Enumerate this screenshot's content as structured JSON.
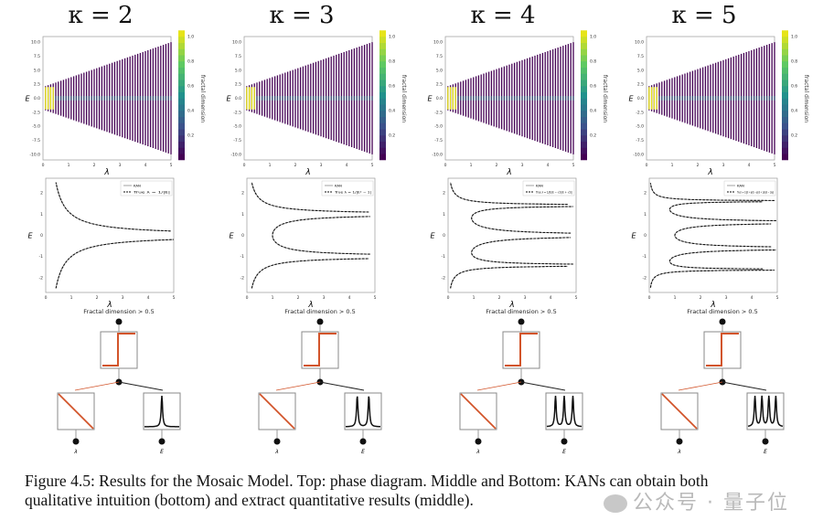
{
  "figure": {
    "caption_line1": "Figure 4.5: Results for the Mosaic Model. Top: phase diagram. Middle and Bottom: KANs can obtain both",
    "caption_line2": "qualitative intuition (bottom) and extract quantitative results (middle).",
    "watermark": "公众号 · 量子位"
  },
  "colors": {
    "phase_low": "#440154",
    "phase_high": "#e6e419",
    "kan_red": "#d2542a",
    "dark": "#111111"
  },
  "chart_data": [
    {
      "type": "scatter",
      "kappa_label": "κ = 2",
      "kappa": 2,
      "top": {
        "xlabel": "λ",
        "ylabel": "E",
        "xlim": [
          0,
          5
        ],
        "ylim": [
          -11,
          11
        ],
        "xticks": [
          "0",
          "1",
          "2",
          "3",
          "4",
          "5"
        ],
        "yticks": [
          "10.0",
          "7.5",
          "5.0",
          "2.5",
          "0.0",
          "-2.5",
          "-5.0",
          "-7.5",
          "-10.0"
        ],
        "colorbar_label": "fractal dimension",
        "colorbar_ticks": [
          "1.0",
          "0.8",
          "0.6",
          "0.4",
          "0.2"
        ]
      },
      "middle": {
        "type": "line",
        "xlabel": "λ",
        "ylabel": "E",
        "xlim": [
          0,
          5
        ],
        "ylim": [
          -2.7,
          2.7
        ],
        "xticks": [
          "0",
          "1",
          "2",
          "3",
          "4",
          "5"
        ],
        "yticks": [
          "2",
          "1",
          "0",
          "-1",
          "-2"
        ],
        "legend": [
          "KAN",
          "True λ = 1/|E|"
        ],
        "true_poly": [
          1,
          0
        ]
      },
      "bottom": {
        "title": "Fractal dimension > 0.5",
        "inputs": [
          "λ",
          "E"
        ],
        "peaks": 1
      }
    },
    {
      "type": "scatter",
      "kappa_label": "κ = 3",
      "kappa": 3,
      "top": {
        "xlabel": "λ",
        "ylabel": "E",
        "xlim": [
          0,
          5
        ],
        "ylim": [
          -11,
          11
        ],
        "xticks": [
          "0",
          "1",
          "2",
          "3",
          "4",
          "5"
        ],
        "yticks": [
          "10.0",
          "7.5",
          "5.0",
          "2.5",
          "0.0",
          "-2.5",
          "-5.0",
          "-7.5",
          "-10.0"
        ],
        "colorbar_label": "fractal dimension",
        "colorbar_ticks": [
          "1.0",
          "0.8",
          "0.6",
          "0.4",
          "0.2"
        ]
      },
      "middle": {
        "type": "line",
        "xlabel": "λ",
        "ylabel": "E",
        "xlim": [
          0,
          5
        ],
        "ylim": [
          -2.7,
          2.7
        ],
        "xticks": [
          "0",
          "1",
          "2",
          "3",
          "4",
          "5"
        ],
        "yticks": [
          "2",
          "1",
          "0",
          "-1",
          "-2"
        ],
        "legend": [
          "KAN",
          "True λ = 1/|E² − 1|"
        ],
        "true_poly": [
          1,
          0,
          -1
        ]
      },
      "bottom": {
        "title": "Fractal dimension > 0.5",
        "inputs": [
          "λ",
          "E"
        ],
        "peaks": 2
      }
    },
    {
      "type": "scatter",
      "kappa_label": "κ = 4",
      "kappa": 4,
      "top": {
        "xlabel": "λ",
        "ylabel": "E",
        "xlim": [
          0,
          5
        ],
        "ylim": [
          -11,
          11
        ],
        "xticks": [
          "0",
          "1",
          "2",
          "3",
          "4",
          "5"
        ],
        "yticks": [
          "10.0",
          "7.5",
          "5.0",
          "2.5",
          "0.0",
          "-2.5",
          "-5.0",
          "-7.5",
          "-10.0"
        ],
        "colorbar_label": "fractal dimension",
        "colorbar_ticks": [
          "1.0",
          "0.8",
          "0.6",
          "0.4",
          "0.2"
        ]
      },
      "middle": {
        "type": "line",
        "xlabel": "λ",
        "ylabel": "E",
        "xlim": [
          0,
          5
        ],
        "ylim": [
          -2.7,
          2.7
        ],
        "xticks": [
          "0",
          "1",
          "2",
          "3",
          "4",
          "5"
        ],
        "yticks": [
          "2",
          "1",
          "0",
          "-1",
          "-2"
        ],
        "legend": [
          "KAN",
          "True λ = 1/|E(E − √2)(E + √2)|"
        ],
        "true_poly": [
          1,
          0,
          -2,
          0
        ]
      },
      "bottom": {
        "title": "Fractal dimension > 0.5",
        "inputs": [
          "λ",
          "E"
        ],
        "peaks": 3
      }
    },
    {
      "type": "scatter",
      "kappa_label": "κ = 5",
      "kappa": 5,
      "top": {
        "xlabel": "λ",
        "ylabel": "E",
        "xlim": [
          0,
          5
        ],
        "ylim": [
          -11,
          11
        ],
        "xticks": [
          "0",
          "1",
          "2",
          "3",
          "4",
          "5"
        ],
        "yticks": [
          "10.0",
          "7.5",
          "5.0",
          "2.5",
          "0.0",
          "-2.5",
          "-5.0",
          "-7.5",
          "-10.0"
        ],
        "colorbar_label": "fractal dimension",
        "colorbar_ticks": [
          "1.0",
          "0.8",
          "0.6",
          "0.4",
          "0.2"
        ]
      },
      "middle": {
        "type": "line",
        "xlabel": "λ",
        "ylabel": "E",
        "xlim": [
          0,
          5
        ],
        "ylim": [
          -2.7,
          2.7
        ],
        "xticks": [
          "0",
          "1",
          "2",
          "3",
          "4",
          "5"
        ],
        "yticks": [
          "2",
          "1",
          "0",
          "-1",
          "-2"
        ],
        "legend": [
          "KAN",
          "True λ = 1/|(E + φ)(E − φ)(E + 1/φ)(E − 1/φ)|"
        ],
        "true_poly": [
          1,
          0,
          -3,
          0,
          1
        ]
      },
      "bottom": {
        "title": "Fractal dimension > 0.5",
        "inputs": [
          "λ",
          "E"
        ],
        "peaks": 4
      }
    }
  ]
}
